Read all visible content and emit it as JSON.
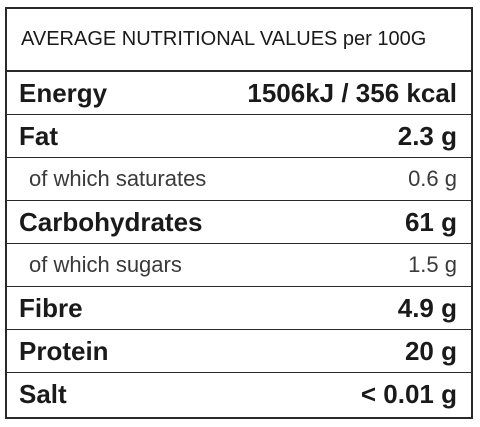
{
  "header": "AVERAGE NUTRITIONAL VALUES per 100G",
  "rows": [
    {
      "label": "Energy",
      "value": "1506kJ / 356 kcal"
    },
    {
      "label": "Fat",
      "value": "2.3 g"
    },
    {
      "label": "of which saturates",
      "value": "0.6 g"
    },
    {
      "label": "Carbohydrates",
      "value": "61 g"
    },
    {
      "label": "of which sugars",
      "value": "1.5 g"
    },
    {
      "label": "Fibre",
      "value": "4.9 g"
    },
    {
      "label": "Protein",
      "value": "20 g"
    },
    {
      "label": "Salt",
      "value": "< 0.01 g"
    }
  ]
}
